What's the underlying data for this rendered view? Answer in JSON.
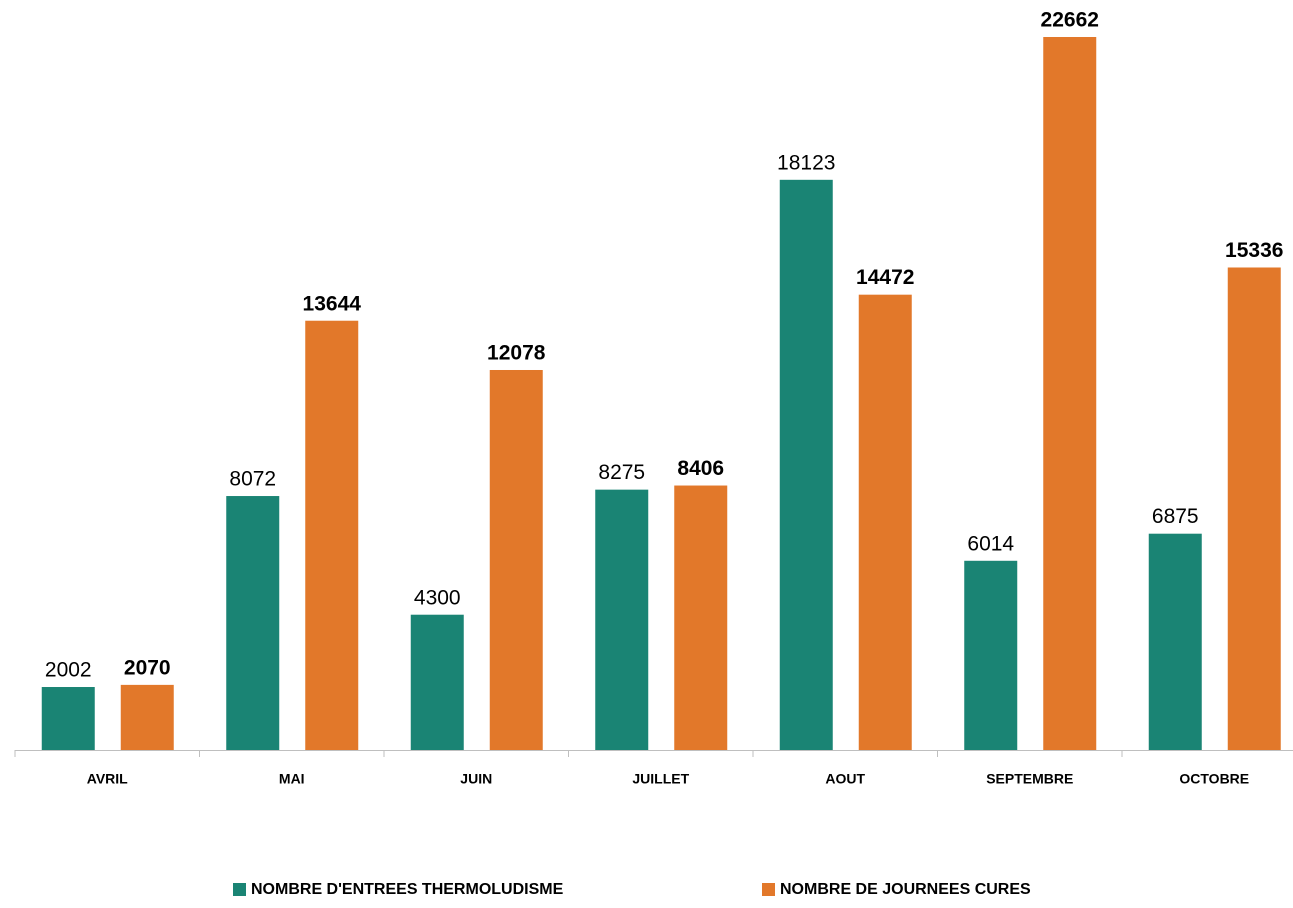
{
  "chart_data": {
    "type": "bar",
    "categories": [
      "AVRIL",
      "MAI",
      "JUIN",
      "JUILLET",
      "AOUT",
      "SEPTEMBRE",
      "OCTOBRE"
    ],
    "series": [
      {
        "name": "NOMBRE D'ENTREES THERMOLUDISME",
        "color": "#1a8474",
        "values": [
          2002,
          8072,
          4300,
          8275,
          18123,
          6014,
          6875
        ]
      },
      {
        "name": "NOMBRE DE JOURNEES CURES",
        "color": "#e2782a",
        "values": [
          2070,
          13644,
          12078,
          8406,
          14472,
          22662,
          15336
        ]
      }
    ],
    "grid": false
  }
}
